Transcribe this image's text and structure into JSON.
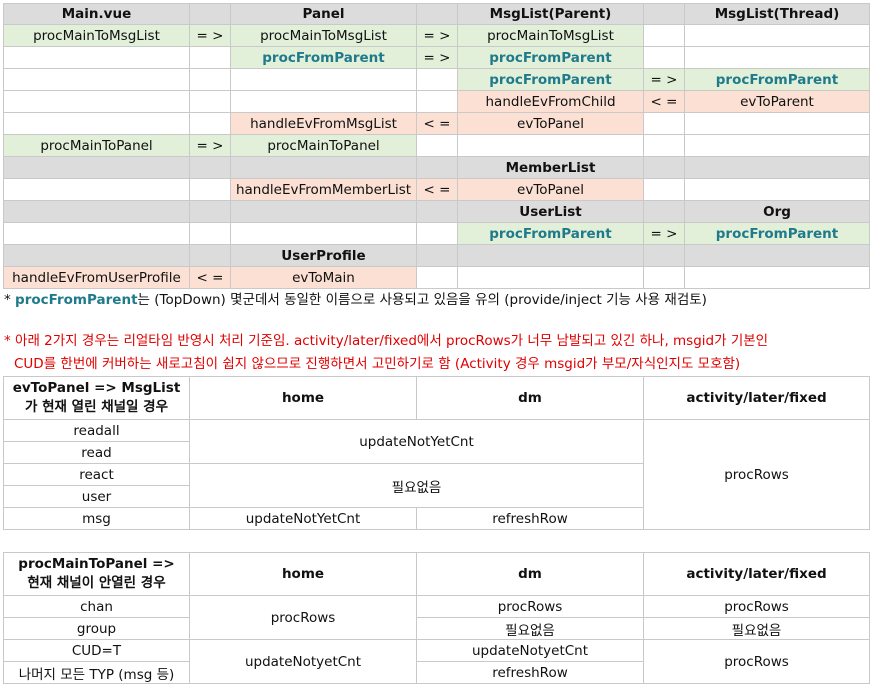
{
  "grid": {
    "headers": {
      "main": "Main.vue",
      "panel": "Panel",
      "msglist_parent": "MsgList(Parent)",
      "msglist_thread": "MsgList(Thread)"
    },
    "arrow_right": "= >",
    "arrow_left": "< =",
    "r1": {
      "main": "procMainToMsgList",
      "panel": "procMainToMsgList",
      "parent": "procMainToMsgList"
    },
    "r2": {
      "panel": "procFromParent",
      "parent": "procFromParent"
    },
    "r3": {
      "parent": "procFromParent",
      "thread": "procFromParent"
    },
    "r4": {
      "parent": "handleEvFromChild",
      "thread": "evToParent"
    },
    "r5": {
      "panel": "handleEvFromMsgList",
      "parent": "evToPanel"
    },
    "r6": {
      "main": "procMainToPanel",
      "panel": "procMainToPanel"
    },
    "r7": {
      "header": "MemberList"
    },
    "r8": {
      "panel": "handleEvFromMemberList",
      "parent": "evToPanel"
    },
    "r9": {
      "userlist": "UserList",
      "org": "Org"
    },
    "r10": {
      "parent": "procFromParent",
      "thread": "procFromParent"
    },
    "r11": {
      "header": "UserProfile"
    },
    "r12": {
      "main": "handleEvFromUserProfile",
      "panel": "evToMain"
    }
  },
  "note1": {
    "prefix": "* ",
    "highlight": "procFromParent",
    "rest": "는 (TopDown) 몇군데서 동일한 이름으로 사용되고 있음을 유의 (provide/inject 기능 사용 재검토)"
  },
  "note2": {
    "line1": "* 아래 2가지 경우는 리얼타임 반영시 처리 기준임. activity/later/fixed에서 procRows가 너무 남발되고 있긴 하나, msgid가 기본인",
    "line2": "CUD를 한번에 커버하는 새로고침이 쉽지 않으므로 진행하면서 고민하기로 함 (Activity 경우 msgid가 부모/자식인지도 모호함)"
  },
  "table1": {
    "title": "evToPanel => MsgList가 현재 열린 채널일 경우",
    "col_home": "home",
    "col_dm": "dm",
    "col_act": "activity/later/fixed",
    "rows": [
      "readall",
      "read",
      "react",
      "user",
      "msg"
    ],
    "merged_update": "updateNotYetCnt",
    "merged_none": "필요없음",
    "msg_home": "updateNotYetCnt",
    "msg_dm": "refreshRow",
    "act": "procRows"
  },
  "table2": {
    "title": "procMainToPanel => 현재 채널이 안열린 경우",
    "col_home": "home",
    "col_dm": "dm",
    "col_act": "activity/later/fixed",
    "rows": [
      "chan",
      "group",
      "CUD=T",
      "나머지 모든 TYP (msg 등)"
    ],
    "home_top": "procRows",
    "home_bottom": "updateNotyetCnt",
    "dm_chan": "procRows",
    "dm_group": "필요없음",
    "dm_cud": "updateNotyetCnt",
    "dm_rest": "refreshRow",
    "act_chan": "procRows",
    "act_group": "필요없음",
    "act_bottom": "procRows"
  }
}
